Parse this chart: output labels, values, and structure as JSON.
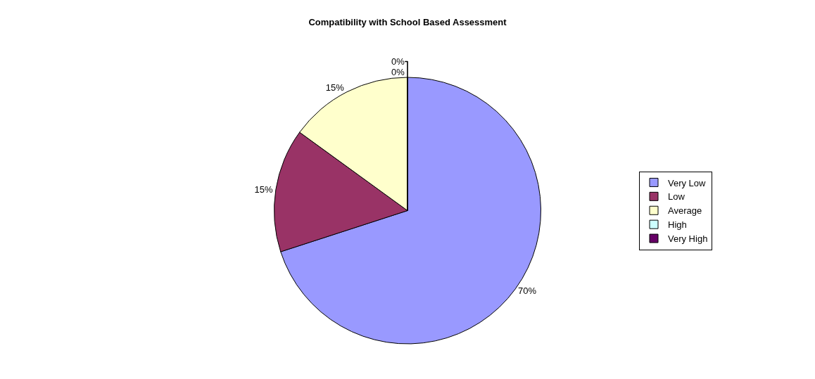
{
  "chart_data": {
    "type": "pie",
    "title": "Compatibility with School Based Assessment",
    "categories": [
      "Very Low",
      "Low",
      "Average",
      "High",
      "Very High"
    ],
    "values": [
      70,
      15,
      15,
      0,
      0
    ],
    "value_labels": [
      "70%",
      "15%",
      "15%",
      "0%",
      "0%"
    ],
    "colors": [
      "#9999ff",
      "#993366",
      "#ffffcc",
      "#ccffff",
      "#660066"
    ],
    "legend": "right"
  }
}
